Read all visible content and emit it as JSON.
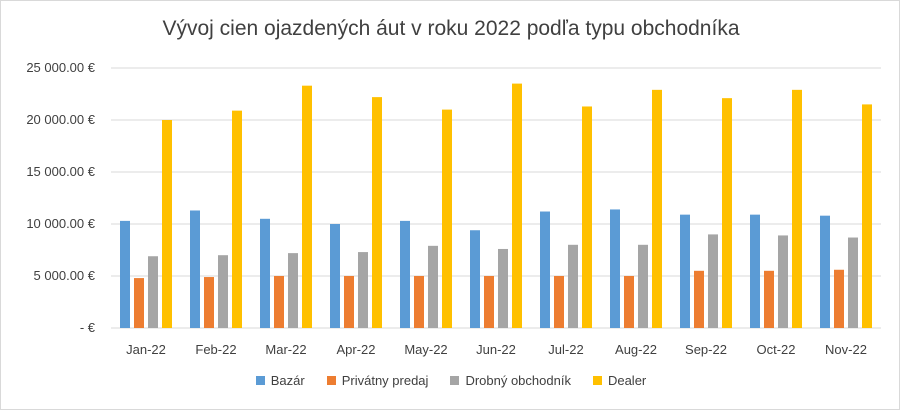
{
  "chart_data": {
    "type": "bar",
    "title": "Vývoj cien ojazdených áut v roku 2022 podľa typu obchodníka",
    "xlabel": "",
    "ylabel": "",
    "categories": [
      "Jan-22",
      "Feb-22",
      "Mar-22",
      "Apr-22",
      "May-22",
      "Jun-22",
      "Jul-22",
      "Aug-22",
      "Sep-22",
      "Oct-22",
      "Nov-22"
    ],
    "y_ticks": [
      0,
      5000,
      10000,
      15000,
      20000,
      25000
    ],
    "y_tick_labels": [
      "-  €",
      "5 000.00 €",
      "10 000.00 €",
      "15 000.00 €",
      "20 000.00 €",
      "25 000.00 €"
    ],
    "ylim": [
      0,
      25000
    ],
    "grid": true,
    "legend_position": "bottom",
    "series": [
      {
        "name": "Bazár",
        "color": "#5b9bd5",
        "values": [
          10300,
          11300,
          10500,
          10000,
          10300,
          9400,
          11200,
          11400,
          10900,
          10900,
          10800
        ]
      },
      {
        "name": "Privátny predaj",
        "color": "#ed7d31",
        "values": [
          4800,
          4900,
          5000,
          5000,
          5000,
          5000,
          5000,
          5000,
          5500,
          5500,
          5600
        ]
      },
      {
        "name": "Drobný obchodník",
        "color": "#a5a5a5",
        "values": [
          6900,
          7000,
          7200,
          7300,
          7900,
          7600,
          8000,
          8000,
          9000,
          8900,
          8700
        ]
      },
      {
        "name": "Dealer",
        "color": "#ffc000",
        "values": [
          20000,
          20900,
          23300,
          22200,
          21000,
          23500,
          21300,
          22900,
          22100,
          22900,
          21500
        ]
      }
    ]
  }
}
